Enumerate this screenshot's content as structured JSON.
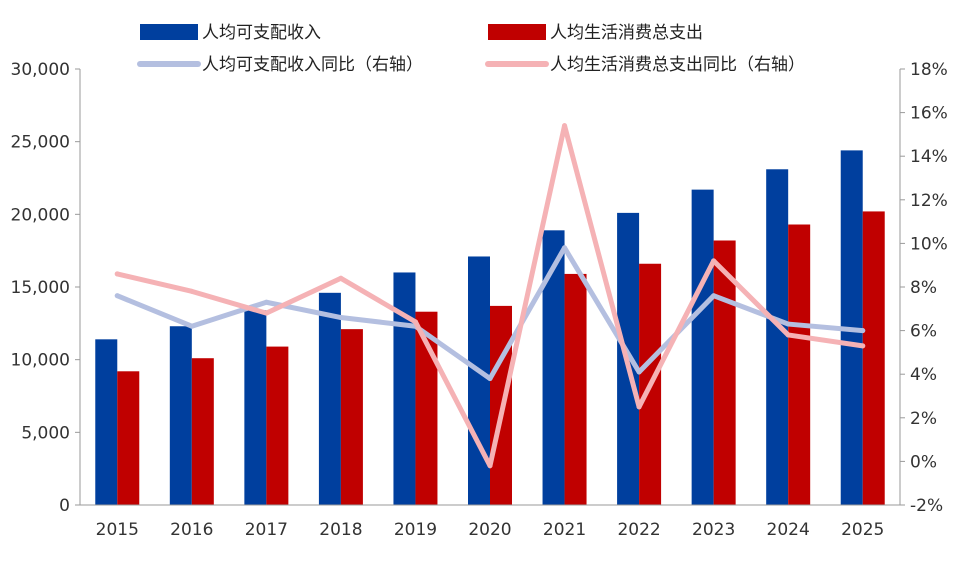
{
  "chart_data": {
    "type": "bar",
    "title": "",
    "xlabel": "",
    "ylabel": "",
    "categories": [
      "2015",
      "2016",
      "2017",
      "2018",
      "2019",
      "2020",
      "2021",
      "2022",
      "2023",
      "2024",
      "2025"
    ],
    "ylim": [
      0,
      30000
    ],
    "y_ticks": [
      0,
      5000,
      10000,
      15000,
      20000,
      25000,
      30000
    ],
    "y_tick_labels": [
      "0",
      "5,000",
      "10,000",
      "15,000",
      "20,000",
      "25,000",
      "30,000"
    ],
    "y2lim": [
      -2,
      18
    ],
    "y2_ticks": [
      -2,
      0,
      2,
      4,
      6,
      8,
      10,
      12,
      14,
      16,
      18
    ],
    "y2_tick_labels": [
      "-2%",
      "0%",
      "2%",
      "4%",
      "6%",
      "8%",
      "10%",
      "12%",
      "14%",
      "16%",
      "18%"
    ],
    "legend_position": "top",
    "series": [
      {
        "name": "人均可支配收入",
        "kind": "bar",
        "axis": "left",
        "color": "#003f9e",
        "values": [
          11400,
          12300,
          13400,
          14600,
          16000,
          17100,
          18900,
          20100,
          21700,
          23100,
          24400
        ]
      },
      {
        "name": "人均生活消费总支出",
        "kind": "bar",
        "axis": "left",
        "color": "#c00000",
        "values": [
          9200,
          10100,
          10900,
          12100,
          13300,
          13700,
          15900,
          16600,
          18200,
          19300,
          20200
        ]
      },
      {
        "name": "人均可支配收入同比（右轴）",
        "kind": "line",
        "axis": "right",
        "color": "#b4bfe0",
        "values": [
          7.6,
          6.2,
          7.3,
          6.6,
          6.2,
          3.8,
          9.8,
          4.1,
          7.6,
          6.3,
          6.0
        ]
      },
      {
        "name": "人均生活消费总支出同比（右轴）",
        "kind": "line",
        "axis": "right",
        "color": "#f5b2b5",
        "values": [
          8.6,
          7.8,
          6.8,
          8.4,
          6.4,
          -0.2,
          15.4,
          2.5,
          9.2,
          5.8,
          5.3
        ]
      }
    ]
  }
}
